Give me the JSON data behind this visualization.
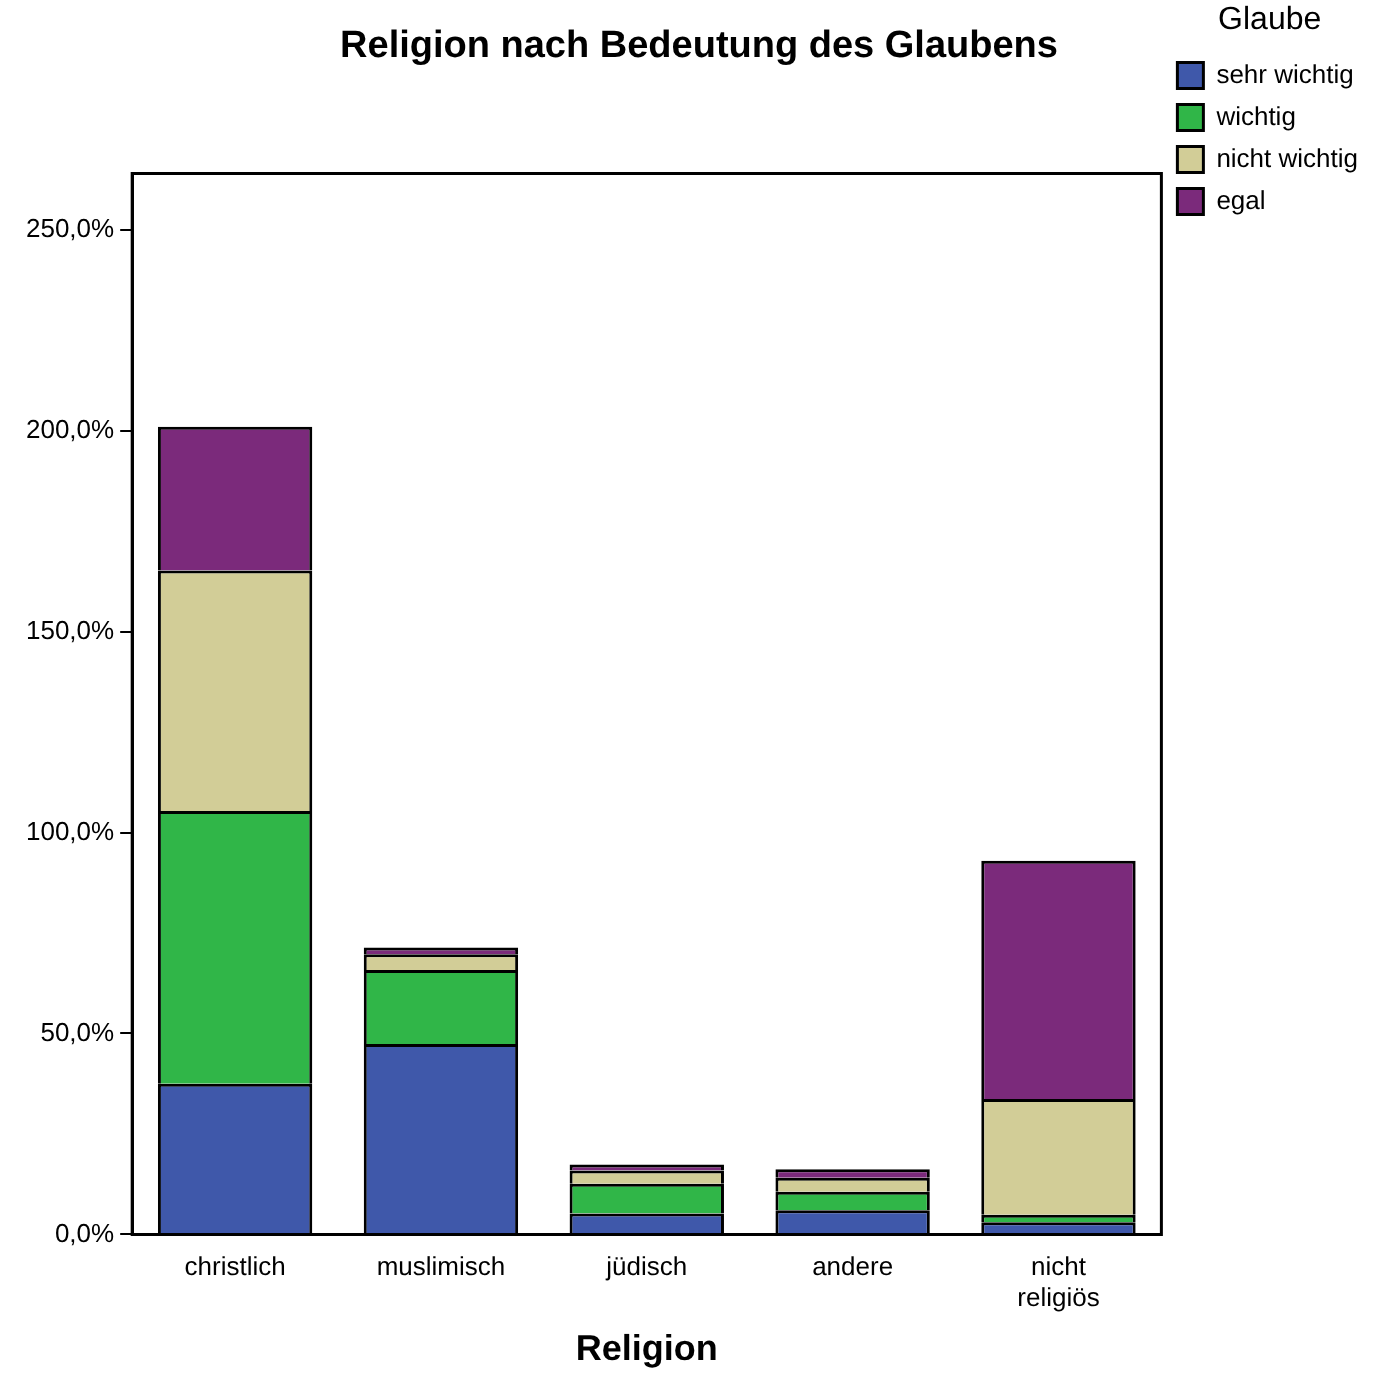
{
  "chart_data": {
    "type": "bar",
    "title": "Religion nach Bedeutung des Glaubens",
    "xlabel": "Religion",
    "legend_title": "Glaube",
    "categories": [
      "christlich",
      "muslimisch",
      "jüdisch",
      "andere",
      "nicht religiös"
    ],
    "stacked": true,
    "series": [
      {
        "name": "sehr wichtig",
        "color": "#3f58aa",
        "values": [
          37.5,
          47.4,
          5.2,
          6.0,
          3.0
        ]
      },
      {
        "name": "wichtig",
        "color": "#30b648",
        "values": [
          67.9,
          18.4,
          7.4,
          4.6,
          1.9
        ]
      },
      {
        "name": "nicht wichtig",
        "color": "#d2cd97",
        "values": [
          59.8,
          3.9,
          3.3,
          3.5,
          28.8
        ]
      },
      {
        "name": "egal",
        "color": "#7b2a7b",
        "values": [
          35.8,
          1.7,
          1.5,
          2.1,
          59.3
        ]
      }
    ],
    "ylim": [
      0,
      264
    ],
    "yticks": [
      {
        "value": 0,
        "label": "0,0%"
      },
      {
        "value": 50,
        "label": "50,0%"
      },
      {
        "value": 100,
        "label": "100,0%"
      },
      {
        "value": 150,
        "label": "150,0%"
      },
      {
        "value": 200,
        "label": "200,0%"
      },
      {
        "value": 250,
        "label": "250,0%"
      }
    ],
    "grid": false,
    "legend": "top right"
  }
}
